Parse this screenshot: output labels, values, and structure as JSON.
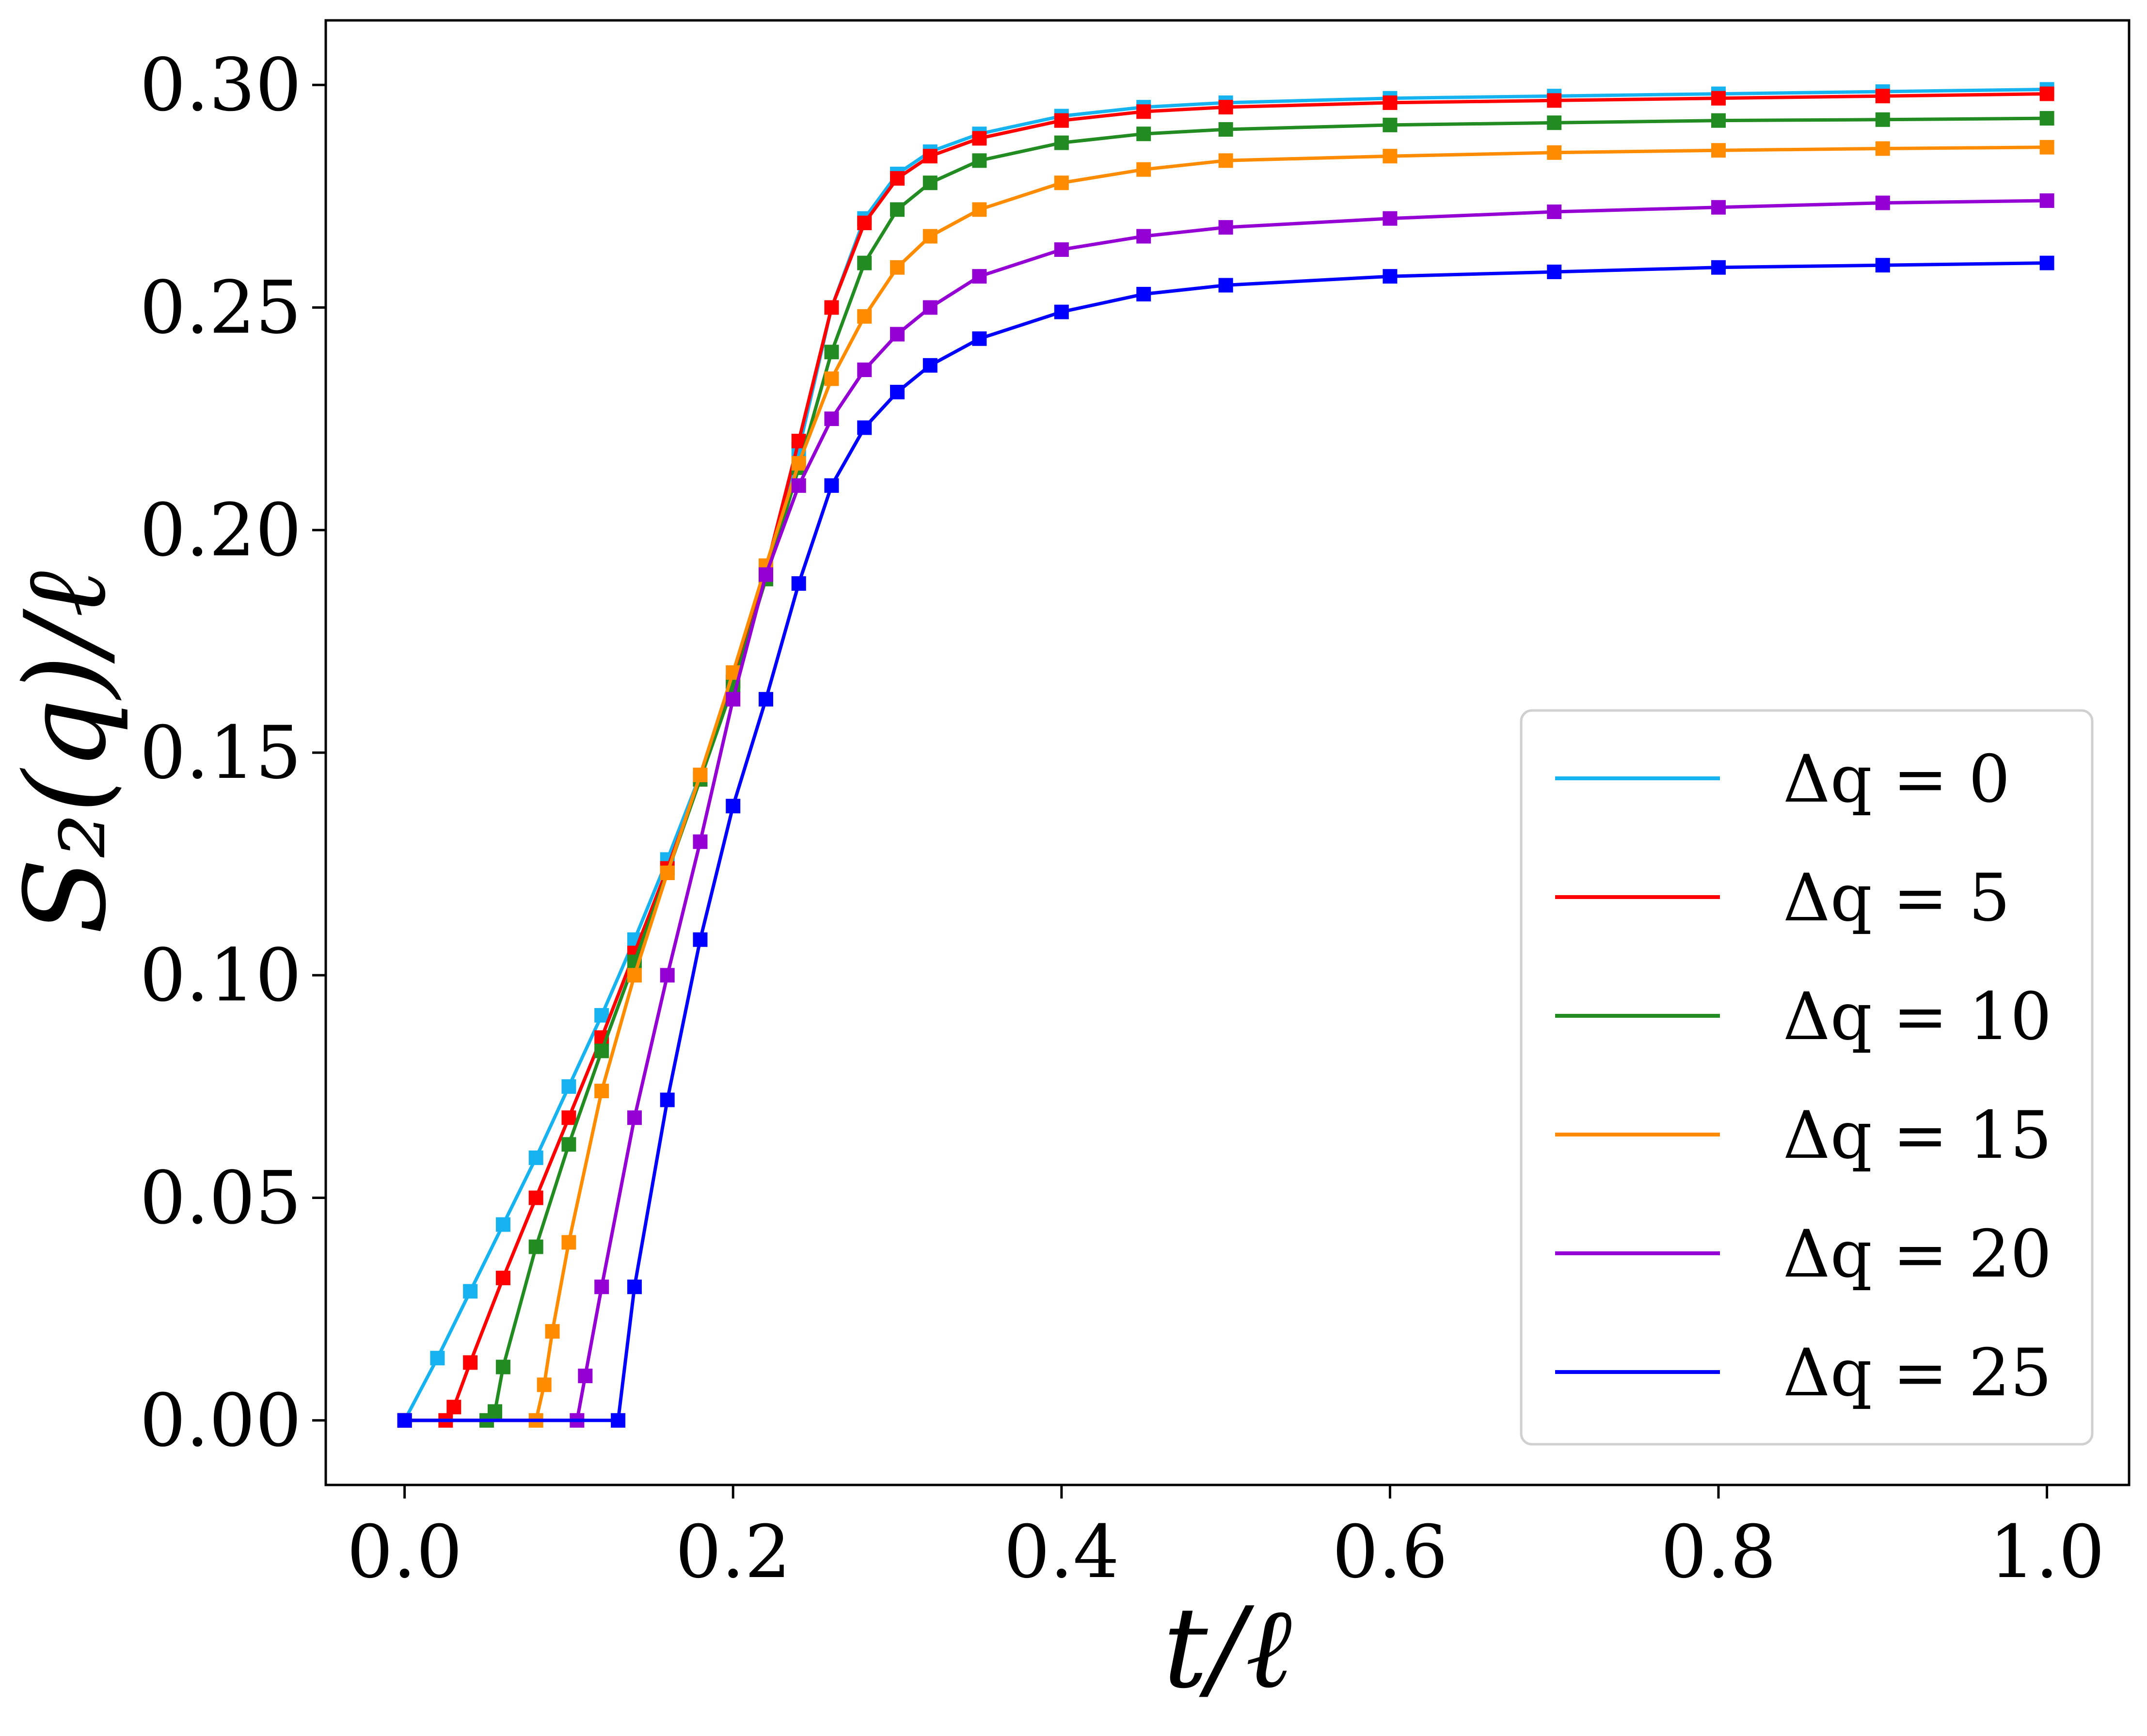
{
  "chart_data": {
    "type": "line",
    "xlabel": "t/ℓ",
    "ylabel": "S₂(q)/ℓ",
    "xlim": [
      -0.048,
      1.05
    ],
    "ylim": [
      -0.0145,
      0.3145
    ],
    "xticks": [
      0.0,
      0.2,
      0.4,
      0.6,
      0.8,
      1.0
    ],
    "xtick_labels": [
      "0.0",
      "0.2",
      "0.4",
      "0.6",
      "0.8",
      "1.0"
    ],
    "yticks": [
      0.0,
      0.05,
      0.1,
      0.15,
      0.2,
      0.25,
      0.3
    ],
    "ytick_labels": [
      "0.00",
      "0.05",
      "0.10",
      "0.15",
      "0.20",
      "0.25",
      "0.30"
    ],
    "grid": false,
    "legend_position": "lower-right",
    "series": [
      {
        "name": "Δq = 0",
        "color": "#17b3f0",
        "x": [
          0.0,
          0.02,
          0.04,
          0.06,
          0.08,
          0.1,
          0.12,
          0.14,
          0.16,
          0.18,
          0.2,
          0.22,
          0.24,
          0.26,
          0.28,
          0.3,
          0.32,
          0.35,
          0.4,
          0.45,
          0.5,
          0.6,
          0.7,
          0.8,
          0.9,
          1.0
        ],
        "y": [
          0.0,
          0.014,
          0.029,
          0.044,
          0.059,
          0.075,
          0.091,
          0.108,
          0.126,
          0.145,
          0.166,
          0.19,
          0.218,
          0.25,
          0.27,
          0.28,
          0.285,
          0.289,
          0.293,
          0.295,
          0.296,
          0.297,
          0.2975,
          0.298,
          0.2985,
          0.299
        ]
      },
      {
        "name": "Δq = 5",
        "color": "#ff0000",
        "x": [
          0.0,
          0.025,
          0.03,
          0.04,
          0.06,
          0.08,
          0.1,
          0.12,
          0.14,
          0.16,
          0.18,
          0.2,
          0.22,
          0.24,
          0.26,
          0.28,
          0.3,
          0.32,
          0.35,
          0.4,
          0.45,
          0.5,
          0.6,
          0.7,
          0.8,
          0.9,
          1.0
        ],
        "y": [
          0.0,
          0.0,
          0.003,
          0.013,
          0.032,
          0.05,
          0.068,
          0.086,
          0.105,
          0.124,
          0.144,
          0.166,
          0.191,
          0.22,
          0.25,
          0.269,
          0.279,
          0.284,
          0.288,
          0.292,
          0.294,
          0.295,
          0.296,
          0.2965,
          0.297,
          0.2975,
          0.298
        ]
      },
      {
        "name": "Δq = 10",
        "color": "#228b22",
        "x": [
          0.0,
          0.05,
          0.055,
          0.06,
          0.08,
          0.1,
          0.12,
          0.14,
          0.16,
          0.18,
          0.2,
          0.22,
          0.24,
          0.26,
          0.28,
          0.3,
          0.32,
          0.35,
          0.4,
          0.45,
          0.5,
          0.6,
          0.7,
          0.8,
          0.9,
          1.0
        ],
        "y": [
          0.0,
          0.0,
          0.002,
          0.012,
          0.039,
          0.062,
          0.083,
          0.103,
          0.123,
          0.144,
          0.165,
          0.189,
          0.214,
          0.24,
          0.26,
          0.272,
          0.278,
          0.283,
          0.287,
          0.289,
          0.29,
          0.291,
          0.2915,
          0.292,
          0.2922,
          0.2925
        ]
      },
      {
        "name": "Δq = 15",
        "color": "#ff8c00",
        "x": [
          0.0,
          0.08,
          0.085,
          0.09,
          0.1,
          0.12,
          0.14,
          0.16,
          0.18,
          0.2,
          0.22,
          0.24,
          0.26,
          0.28,
          0.3,
          0.32,
          0.35,
          0.4,
          0.45,
          0.5,
          0.6,
          0.7,
          0.8,
          0.9,
          1.0
        ],
        "y": [
          0.0,
          0.0,
          0.008,
          0.02,
          0.04,
          0.074,
          0.1,
          0.123,
          0.145,
          0.168,
          0.192,
          0.215,
          0.234,
          0.248,
          0.259,
          0.266,
          0.272,
          0.278,
          0.281,
          0.283,
          0.284,
          0.2848,
          0.2853,
          0.2857,
          0.286
        ]
      },
      {
        "name": "Δq = 20",
        "color": "#9400d3",
        "x": [
          0.0,
          0.105,
          0.11,
          0.12,
          0.14,
          0.16,
          0.18,
          0.2,
          0.22,
          0.24,
          0.26,
          0.28,
          0.3,
          0.32,
          0.35,
          0.4,
          0.45,
          0.5,
          0.6,
          0.7,
          0.8,
          0.9,
          1.0
        ],
        "y": [
          0.0,
          0.0,
          0.01,
          0.03,
          0.068,
          0.1,
          0.13,
          0.162,
          0.19,
          0.21,
          0.225,
          0.236,
          0.244,
          0.25,
          0.257,
          0.263,
          0.266,
          0.268,
          0.27,
          0.2715,
          0.2725,
          0.2735,
          0.274
        ]
      },
      {
        "name": "Δq = 25",
        "color": "#0000ff",
        "x": [
          0.0,
          0.13,
          0.14,
          0.16,
          0.18,
          0.2,
          0.22,
          0.24,
          0.26,
          0.28,
          0.3,
          0.32,
          0.35,
          0.4,
          0.45,
          0.5,
          0.6,
          0.7,
          0.8,
          0.9,
          1.0
        ],
        "y": [
          0.0,
          0.0,
          0.03,
          0.072,
          0.108,
          0.138,
          0.162,
          0.188,
          0.21,
          0.223,
          0.231,
          0.237,
          0.243,
          0.249,
          0.253,
          0.255,
          0.257,
          0.258,
          0.259,
          0.2595,
          0.26
        ]
      }
    ]
  }
}
